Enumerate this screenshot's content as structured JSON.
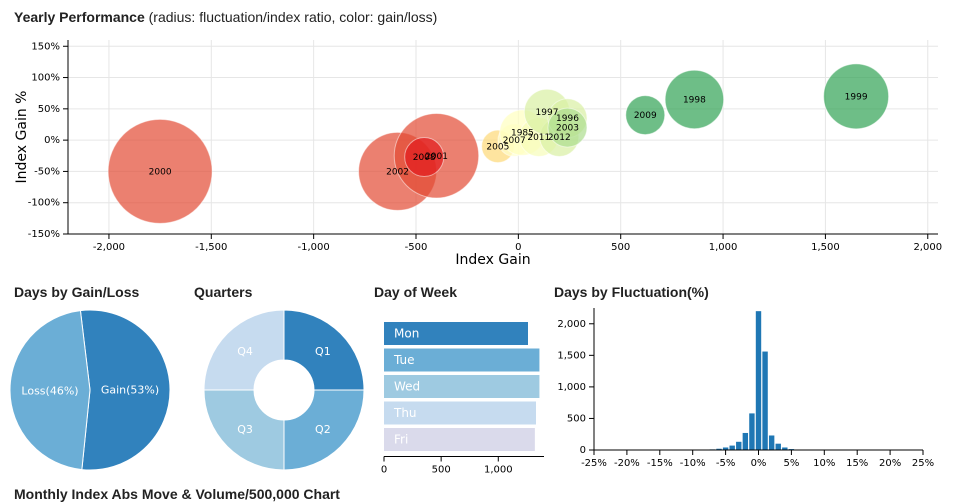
{
  "page": {
    "yearly_title": "Yearly Performance",
    "yearly_subtitle": "(radius: fluctuation/index ratio, color: gain/loss)",
    "gainloss_title": "Days by Gain/Loss",
    "quarters_title": "Quarters",
    "dow_title": "Day of Week",
    "fluct_title": "Days by Fluctuation(%)",
    "bottom_title": "Monthly Index Abs Move & Volume/500,000 Chart"
  },
  "colors": {
    "loss": "#e34a33",
    "gain": "#31a354",
    "neutral": "#ffffbf",
    "blue_dark": "#3182bd",
    "blue_mid": "#6baed6",
    "blue_light": "#9ecae1",
    "blue_pale": "#c6dbef",
    "lavender": "#dadaeb"
  },
  "chart_data": [
    {
      "type": "scatter",
      "title": "Yearly Performance",
      "xlabel": "Index Gain",
      "ylabel": "Index Gain %",
      "xlim": [
        -2200,
        2050
      ],
      "ylim": [
        -150,
        160
      ],
      "xticks": [
        -2000,
        -1500,
        -1000,
        -500,
        0,
        500,
        1000,
        1500,
        2000
      ],
      "xtick_labels": [
        "-2,000",
        "-1,500",
        "-1,000",
        "-500",
        "0",
        "500",
        "1,000",
        "1,500",
        "2,000"
      ],
      "yticks": [
        -150,
        -100,
        -50,
        0,
        50,
        100,
        150
      ],
      "ytick_labels": [
        "-150%",
        "-100%",
        "-50%",
        "0%",
        "50%",
        "100%",
        "150%"
      ],
      "points": [
        {
          "label": "2000",
          "x": -1750,
          "y": -50,
          "size": 8.0,
          "color": "#e34a33"
        },
        {
          "label": "2002",
          "x": -590,
          "y": -50,
          "size": 6.0,
          "color": "#e34a33"
        },
        {
          "label": "2001",
          "x": -400,
          "y": -25,
          "size": 6.5,
          "color": "#e34a33"
        },
        {
          "label": "2008",
          "x": -460,
          "y": -27,
          "size": 3.0,
          "color": "#e31a1c"
        },
        {
          "label": "2005",
          "x": -100,
          "y": -10,
          "size": 2.5,
          "color": "#fed976"
        },
        {
          "label": "2007",
          "x": -20,
          "y": 0,
          "size": 2.5,
          "color": "#ffffcc"
        },
        {
          "label": "1985",
          "x": 20,
          "y": 12,
          "size": 3.5,
          "color": "#ffffbf"
        },
        {
          "label": "2011",
          "x": 100,
          "y": 5,
          "size": 3.0,
          "color": "#f7fcb9"
        },
        {
          "label": "2012",
          "x": 200,
          "y": 5,
          "size": 3.0,
          "color": "#d9f0a3"
        },
        {
          "label": "1997",
          "x": 140,
          "y": 45,
          "size": 3.5,
          "color": "#d9f0a3"
        },
        {
          "label": "1996",
          "x": 240,
          "y": 35,
          "size": 3.0,
          "color": "#d9f0a3"
        },
        {
          "label": "2003",
          "x": 240,
          "y": 20,
          "size": 3.0,
          "color": "#addd8e"
        },
        {
          "label": "2009",
          "x": 620,
          "y": 40,
          "size": 3.0,
          "color": "#31a354"
        },
        {
          "label": "1998",
          "x": 860,
          "y": 65,
          "size": 4.5,
          "color": "#31a354"
        },
        {
          "label": "1999",
          "x": 1650,
          "y": 70,
          "size": 5.0,
          "color": "#31a354"
        }
      ]
    },
    {
      "type": "pie",
      "title": "Days by Gain/Loss",
      "slices": [
        {
          "label": "Gain(53%)",
          "value": 53,
          "color": "#3182bd"
        },
        {
          "label": "Loss(46%)",
          "value": 46,
          "color": "#6baed6"
        }
      ]
    },
    {
      "type": "pie",
      "title": "Quarters",
      "donut": true,
      "slices": [
        {
          "label": "Q1",
          "value": 25,
          "color": "#3182bd"
        },
        {
          "label": "Q2",
          "value": 25,
          "color": "#6baed6"
        },
        {
          "label": "Q3",
          "value": 25,
          "color": "#9ecae1"
        },
        {
          "label": "Q4",
          "value": 25,
          "color": "#c6dbef"
        }
      ]
    },
    {
      "type": "bar",
      "orientation": "horizontal",
      "title": "Day of Week",
      "categories": [
        "Mon",
        "Tue",
        "Wed",
        "Thu",
        "Fri"
      ],
      "values": [
        1260,
        1360,
        1360,
        1330,
        1320
      ],
      "colors": [
        "#3182bd",
        "#6baed6",
        "#9ecae1",
        "#c6dbef",
        "#dadaeb"
      ],
      "xlim": [
        0,
        1400
      ],
      "xticks": [
        0,
        500,
        1000
      ],
      "xtick_labels": [
        "0",
        "500",
        "1,000"
      ]
    },
    {
      "type": "bar",
      "title": "Days by Fluctuation(%)",
      "xlim": [
        -25,
        25
      ],
      "ylim": [
        0,
        2250
      ],
      "xticks": [
        -25,
        -20,
        -15,
        -10,
        -5,
        0,
        5,
        10,
        15,
        20,
        25
      ],
      "xtick_labels": [
        "-25%",
        "-20%",
        "-15%",
        "-10%",
        "-5%",
        "0%",
        "5%",
        "10%",
        "15%",
        "20%",
        "25%"
      ],
      "yticks": [
        0,
        500,
        1000,
        1500,
        2000
      ],
      "ytick_labels": [
        "0",
        "500",
        "1,000",
        "1,500",
        "2,000"
      ],
      "x": [
        -8,
        -7,
        -6,
        -5,
        -4,
        -3,
        -2,
        -1,
        0,
        1,
        2,
        3,
        4,
        5,
        6
      ],
      "values": [
        5,
        10,
        20,
        40,
        70,
        130,
        270,
        580,
        2200,
        1560,
        230,
        100,
        40,
        15,
        5
      ]
    }
  ]
}
